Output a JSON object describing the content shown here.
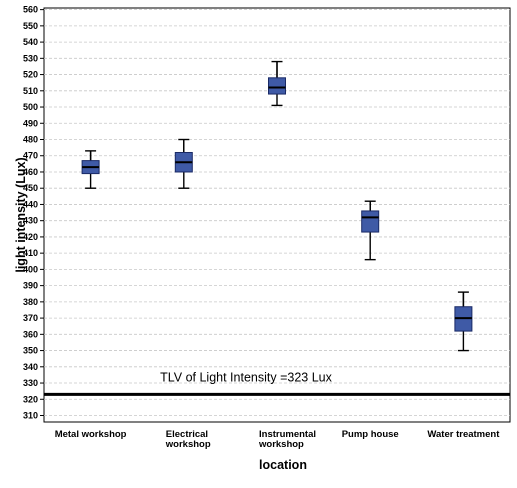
{
  "chart_data": {
    "type": "box",
    "xlabel": "location",
    "ylabel": "light intensity (Lux)",
    "ylim": [
      306,
      561
    ],
    "yticks": [
      310,
      320,
      330,
      340,
      350,
      360,
      370,
      380,
      390,
      400,
      410,
      420,
      430,
      440,
      450,
      460,
      470,
      480,
      490,
      500,
      510,
      520,
      530,
      540,
      550,
      560
    ],
    "grid": true,
    "box_color": "#3f5aa6",
    "categories": [
      [
        "Metal workshop"
      ],
      [
        "Electrical",
        "workshop"
      ],
      [
        "Instrumental",
        "workshop"
      ],
      [
        "Pump house"
      ],
      [
        "Water treatment"
      ]
    ],
    "boxes": [
      {
        "min": 450,
        "q1": 459,
        "median": 463,
        "q3": 467,
        "max": 473
      },
      {
        "min": 450,
        "q1": 460,
        "median": 466,
        "q3": 472,
        "max": 480
      },
      {
        "min": 501,
        "q1": 508,
        "median": 512,
        "q3": 518,
        "max": 528
      },
      {
        "min": 406,
        "q1": 423,
        "median": 432,
        "q3": 436,
        "max": 442
      },
      {
        "min": 350,
        "q1": 362,
        "median": 370,
        "q3": 377,
        "max": 386
      }
    ],
    "reference_line": {
      "value": 323,
      "label": "TLV of Light Intensity =323 Lux"
    }
  }
}
